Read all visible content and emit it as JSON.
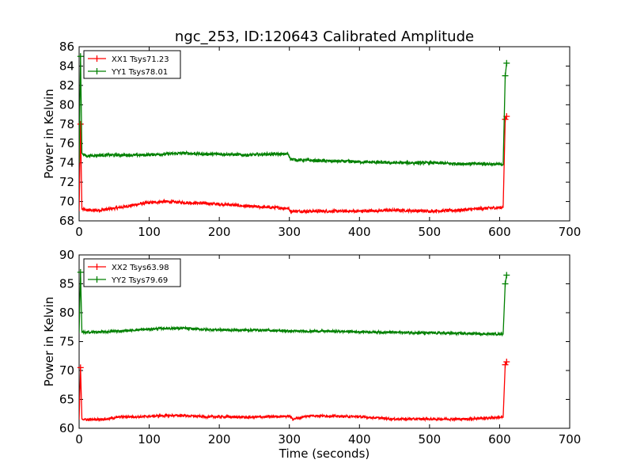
{
  "title": "ngc_253, ID:120643 Calibrated Amplitude",
  "chart_data": [
    {
      "type": "line",
      "ylabel": "Power in Kelvin",
      "xlabel": "",
      "xlim": [
        0,
        700
      ],
      "ylim": [
        68,
        86
      ],
      "xticks": [
        "0",
        "100",
        "200",
        "300",
        "400",
        "500",
        "600",
        "700"
      ],
      "yticks": [
        "68",
        "70",
        "72",
        "74",
        "76",
        "78",
        "80",
        "82",
        "84",
        "86"
      ],
      "legend_position": "top-left",
      "series": [
        {
          "name": "XX1 Tsys71.23",
          "color": "#ff0000",
          "x": [
            0,
            2,
            4,
            10,
            30,
            60,
            90,
            120,
            150,
            180,
            210,
            240,
            270,
            298,
            302,
            310,
            350,
            400,
            450,
            500,
            540,
            580,
            605,
            608,
            610
          ],
          "y": [
            69.0,
            78.0,
            69.2,
            69.1,
            69.1,
            69.4,
            69.8,
            70.0,
            69.9,
            69.8,
            69.7,
            69.5,
            69.4,
            69.3,
            69.0,
            69.0,
            69.0,
            69.0,
            69.1,
            69.0,
            69.1,
            69.3,
            69.4,
            78.5,
            78.8
          ]
        },
        {
          "name": "YY1 Tsys78.01",
          "color": "#008000",
          "x": [
            0,
            2,
            4,
            10,
            30,
            60,
            90,
            120,
            150,
            180,
            210,
            240,
            270,
            298,
            302,
            310,
            350,
            400,
            450,
            500,
            540,
            580,
            605,
            608,
            610
          ],
          "y": [
            74.0,
            85.0,
            75.0,
            74.7,
            74.8,
            74.8,
            74.8,
            74.9,
            75.0,
            74.9,
            74.9,
            74.8,
            74.9,
            74.9,
            74.4,
            74.3,
            74.2,
            74.1,
            74.0,
            74.0,
            73.9,
            73.9,
            73.8,
            83.0,
            84.3
          ]
        }
      ],
      "noise": 0.15
    },
    {
      "type": "line",
      "ylabel": "Power in Kelvin",
      "xlabel": "Time (seconds)",
      "xlim": [
        0,
        700
      ],
      "ylim": [
        60,
        90
      ],
      "xticks": [
        "0",
        "100",
        "200",
        "300",
        "400",
        "500",
        "600",
        "700"
      ],
      "yticks": [
        "60",
        "65",
        "70",
        "75",
        "80",
        "85",
        "90"
      ],
      "legend_position": "top-left",
      "series": [
        {
          "name": "XX2 Tsys63.98",
          "color": "#ff0000",
          "x": [
            0,
            2,
            4,
            10,
            40,
            60,
            90,
            120,
            150,
            180,
            210,
            240,
            270,
            300,
            305,
            330,
            360,
            400,
            450,
            500,
            550,
            600,
            605,
            608,
            610
          ],
          "y": [
            61.5,
            70.5,
            61.6,
            61.5,
            61.6,
            62.0,
            62.0,
            62.2,
            62.2,
            62.0,
            62.0,
            61.9,
            62.0,
            62.1,
            61.6,
            62.2,
            62.1,
            62.0,
            61.6,
            61.6,
            61.6,
            61.9,
            61.9,
            71.0,
            71.5
          ]
        },
        {
          "name": "YY2 Tsys79.69",
          "color": "#008000",
          "x": [
            0,
            2,
            4,
            10,
            40,
            80,
            120,
            150,
            180,
            220,
            260,
            300,
            350,
            400,
            450,
            500,
            550,
            600,
            605,
            608,
            610
          ],
          "y": [
            76.5,
            87.0,
            76.6,
            76.6,
            76.7,
            77.0,
            77.3,
            77.3,
            77.1,
            77.0,
            77.0,
            76.8,
            76.8,
            76.7,
            76.6,
            76.5,
            76.4,
            76.3,
            76.3,
            85.0,
            86.5
          ]
        }
      ],
      "noise": 0.2
    }
  ]
}
